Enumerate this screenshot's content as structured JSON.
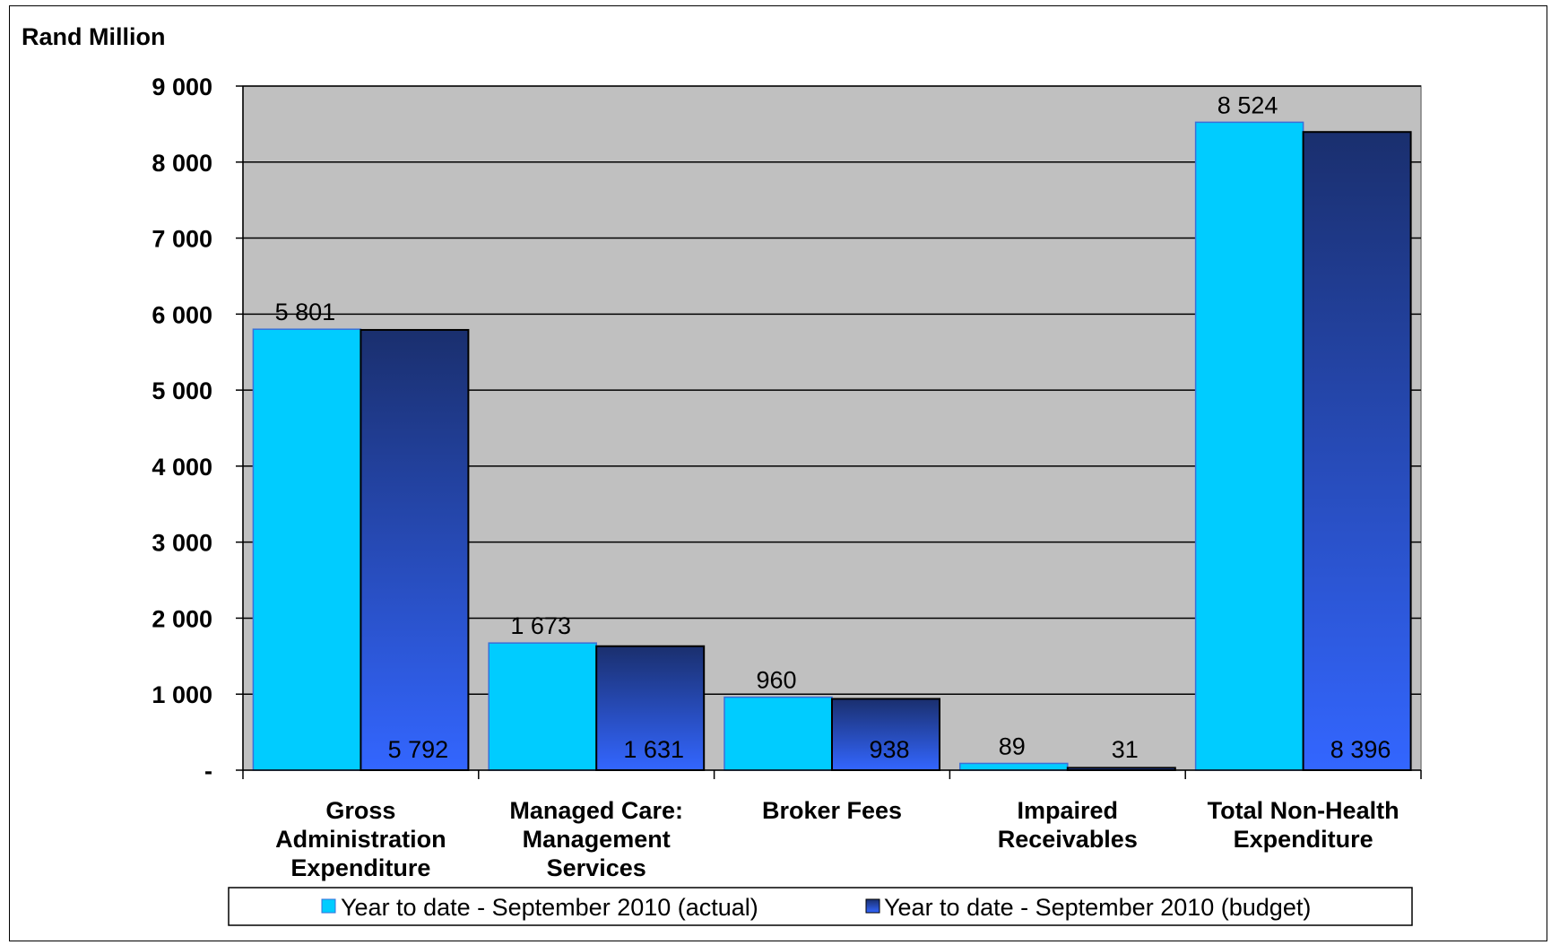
{
  "chart_data": {
    "type": "bar",
    "title": "",
    "ylabel": "Rand Million",
    "xlabel": "",
    "ylim": [
      0,
      9000
    ],
    "yticks": [
      0,
      1000,
      2000,
      3000,
      4000,
      5000,
      6000,
      7000,
      8000,
      9000
    ],
    "ytick_labels": [
      "-",
      "1 000",
      "2 000",
      "3 000",
      "4 000",
      "5 000",
      "6 000",
      "7 000",
      "8 000",
      "9 000"
    ],
    "categories": [
      [
        "Gross",
        "Administration",
        "Expenditure"
      ],
      [
        "Managed Care:",
        "Management",
        "Services"
      ],
      [
        "Broker Fees"
      ],
      [
        "Impaired",
        "Receivables"
      ],
      [
        "Total Non-Health",
        "Expenditure"
      ]
    ],
    "series": [
      {
        "name": "Year to date - September 2010 (actual)",
        "values": [
          5801,
          1673,
          960,
          89,
          8524
        ],
        "labels": [
          "5 801",
          "1 673",
          "960",
          "89",
          "8 524"
        ],
        "color": "#00ccff"
      },
      {
        "name": "Year to date - September 2010 (budget)",
        "values": [
          5792,
          1631,
          938,
          31,
          8396
        ],
        "labels": [
          "5 792",
          "1 631",
          "938",
          "31",
          "8 396"
        ],
        "color_top": "#1a2f6e",
        "color_bottom": "#3366ff"
      }
    ],
    "plot_background": "#c0c0c0",
    "grid": true,
    "legend_position": "bottom"
  }
}
